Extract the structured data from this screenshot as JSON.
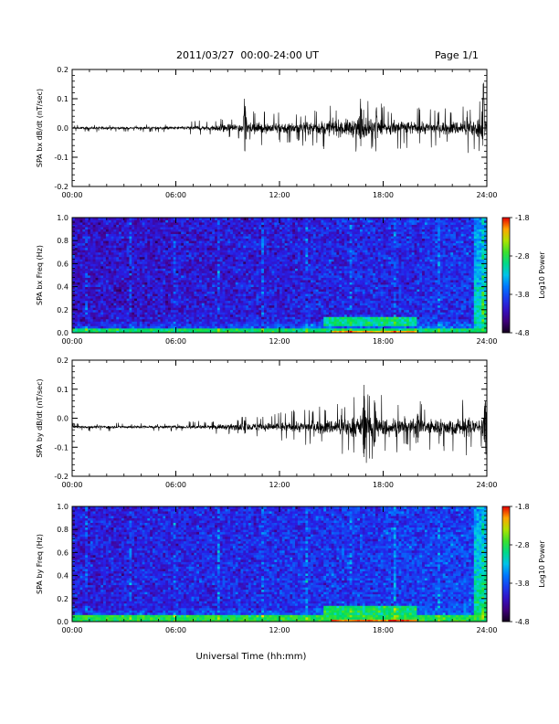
{
  "header": {
    "title": "2011/03/27  00:00-24:00 UT",
    "page": "Page 1/1"
  },
  "chart_data": [
    {
      "type": "line",
      "ylabel": "SPA bx dB/dt (nT/sec)",
      "xlim": [
        0,
        24
      ],
      "ylim": [
        -0.2,
        0.2
      ],
      "x_ticks": [
        "00:00",
        "06:00",
        "12:00",
        "18:00",
        "24:00"
      ],
      "y_ticks": [
        "-0.2",
        "-0.1",
        "0.0",
        "0.1",
        "0.2"
      ],
      "baseline": 0.0,
      "envelope": [
        {
          "x": 0,
          "amp": 0.006
        },
        {
          "x": 1.5,
          "amp": 0.007
        },
        {
          "x": 3,
          "amp": 0.006
        },
        {
          "x": 6,
          "amp": 0.008
        },
        {
          "x": 8,
          "amp": 0.015
        },
        {
          "x": 9.5,
          "amp": 0.025
        },
        {
          "x": 11,
          "amp": 0.03
        },
        {
          "x": 13,
          "amp": 0.03
        },
        {
          "x": 15,
          "amp": 0.04
        },
        {
          "x": 16.5,
          "amp": 0.05
        },
        {
          "x": 18,
          "amp": 0.045
        },
        {
          "x": 20,
          "amp": 0.035
        },
        {
          "x": 22,
          "amp": 0.035
        },
        {
          "x": 23.5,
          "amp": 0.05
        },
        {
          "x": 24,
          "amp": 0.05
        }
      ],
      "peaks": [
        {
          "x": 10.0,
          "max": 0.13,
          "min": -0.09
        },
        {
          "x": 16.7,
          "max": 0.11,
          "min": -0.08
        },
        {
          "x": 17.6,
          "max": 0.07,
          "min": -0.09
        },
        {
          "x": 23.8,
          "max": 0.18,
          "min": -0.1
        }
      ]
    },
    {
      "type": "heatmap",
      "ylabel": "SPA bx Freq (Hz)",
      "colorbar_label": "Log10 Power",
      "colorbar_ticks": [
        "-1.8",
        "-2.8",
        "-3.8",
        "-4.8"
      ],
      "zlim": [
        -4.8,
        -1.8
      ],
      "xlim": [
        0,
        24
      ],
      "ylim": [
        0.0,
        1.0
      ],
      "x_ticks": [
        "00:00",
        "06:00",
        "12:00",
        "18:00",
        "24:00"
      ],
      "y_ticks": [
        "0.0",
        "0.2",
        "0.4",
        "0.6",
        "0.8",
        "1.0"
      ],
      "background_level": -4.2,
      "low_freq_band": {
        "fmax": 0.05,
        "level": -2.9
      },
      "enhanced_region": {
        "x0": 14.5,
        "x1": 20,
        "f0": 0.05,
        "f1": 0.15,
        "level": -3.0
      },
      "late_enhancement": {
        "x0": 23.3,
        "x1": 24,
        "level": -3.0
      }
    },
    {
      "type": "line",
      "ylabel": "SPA by dB/dt (nT/sec)",
      "xlim": [
        0,
        24
      ],
      "ylim": [
        -0.2,
        0.2
      ],
      "x_ticks": [
        "00:00",
        "06:00",
        "12:00",
        "18:00",
        "24:00"
      ],
      "y_ticks": [
        "-0.2",
        "-0.1",
        "0.0",
        "0.1",
        "0.2"
      ],
      "baseline": -0.03,
      "envelope": [
        {
          "x": 0,
          "amp": 0.008
        },
        {
          "x": 3,
          "amp": 0.007
        },
        {
          "x": 6,
          "amp": 0.008
        },
        {
          "x": 9,
          "amp": 0.015
        },
        {
          "x": 12,
          "amp": 0.025
        },
        {
          "x": 15,
          "amp": 0.04
        },
        {
          "x": 17,
          "amp": 0.065
        },
        {
          "x": 19,
          "amp": 0.045
        },
        {
          "x": 21,
          "amp": 0.045
        },
        {
          "x": 23,
          "amp": 0.05
        },
        {
          "x": 24,
          "amp": 0.05
        }
      ],
      "peaks": [
        {
          "x": 10.0,
          "max": 0.0,
          "min": -0.06
        },
        {
          "x": 16.9,
          "max": 0.15,
          "min": -0.16
        },
        {
          "x": 17.5,
          "max": 0.08,
          "min": -0.12
        },
        {
          "x": 20.0,
          "max": 0.03,
          "min": -0.1
        },
        {
          "x": 23.9,
          "max": 0.09,
          "min": -0.12
        }
      ]
    },
    {
      "type": "heatmap",
      "ylabel": "SPA by Freq (Hz)",
      "colorbar_label": "Log10 Power",
      "colorbar_ticks": [
        "-1.8",
        "-2.8",
        "-3.8",
        "-4.8"
      ],
      "zlim": [
        -4.8,
        -1.8
      ],
      "xlim": [
        0,
        24
      ],
      "ylim": [
        0.0,
        1.0
      ],
      "x_ticks": [
        "00:00",
        "06:00",
        "12:00",
        "18:00",
        "24:00"
      ],
      "y_ticks": [
        "0.0",
        "0.2",
        "0.4",
        "0.6",
        "0.8",
        "1.0"
      ],
      "background_level": -4.1,
      "low_freq_band": {
        "fmax": 0.06,
        "level": -2.8
      },
      "enhanced_region": {
        "x0": 14.5,
        "x1": 20,
        "f0": 0.05,
        "f1": 0.15,
        "level": -2.9
      },
      "late_enhancement": {
        "x0": 23.3,
        "x1": 24,
        "level": -2.9
      }
    }
  ],
  "xlabel": "Universal Time (hh:mm)"
}
